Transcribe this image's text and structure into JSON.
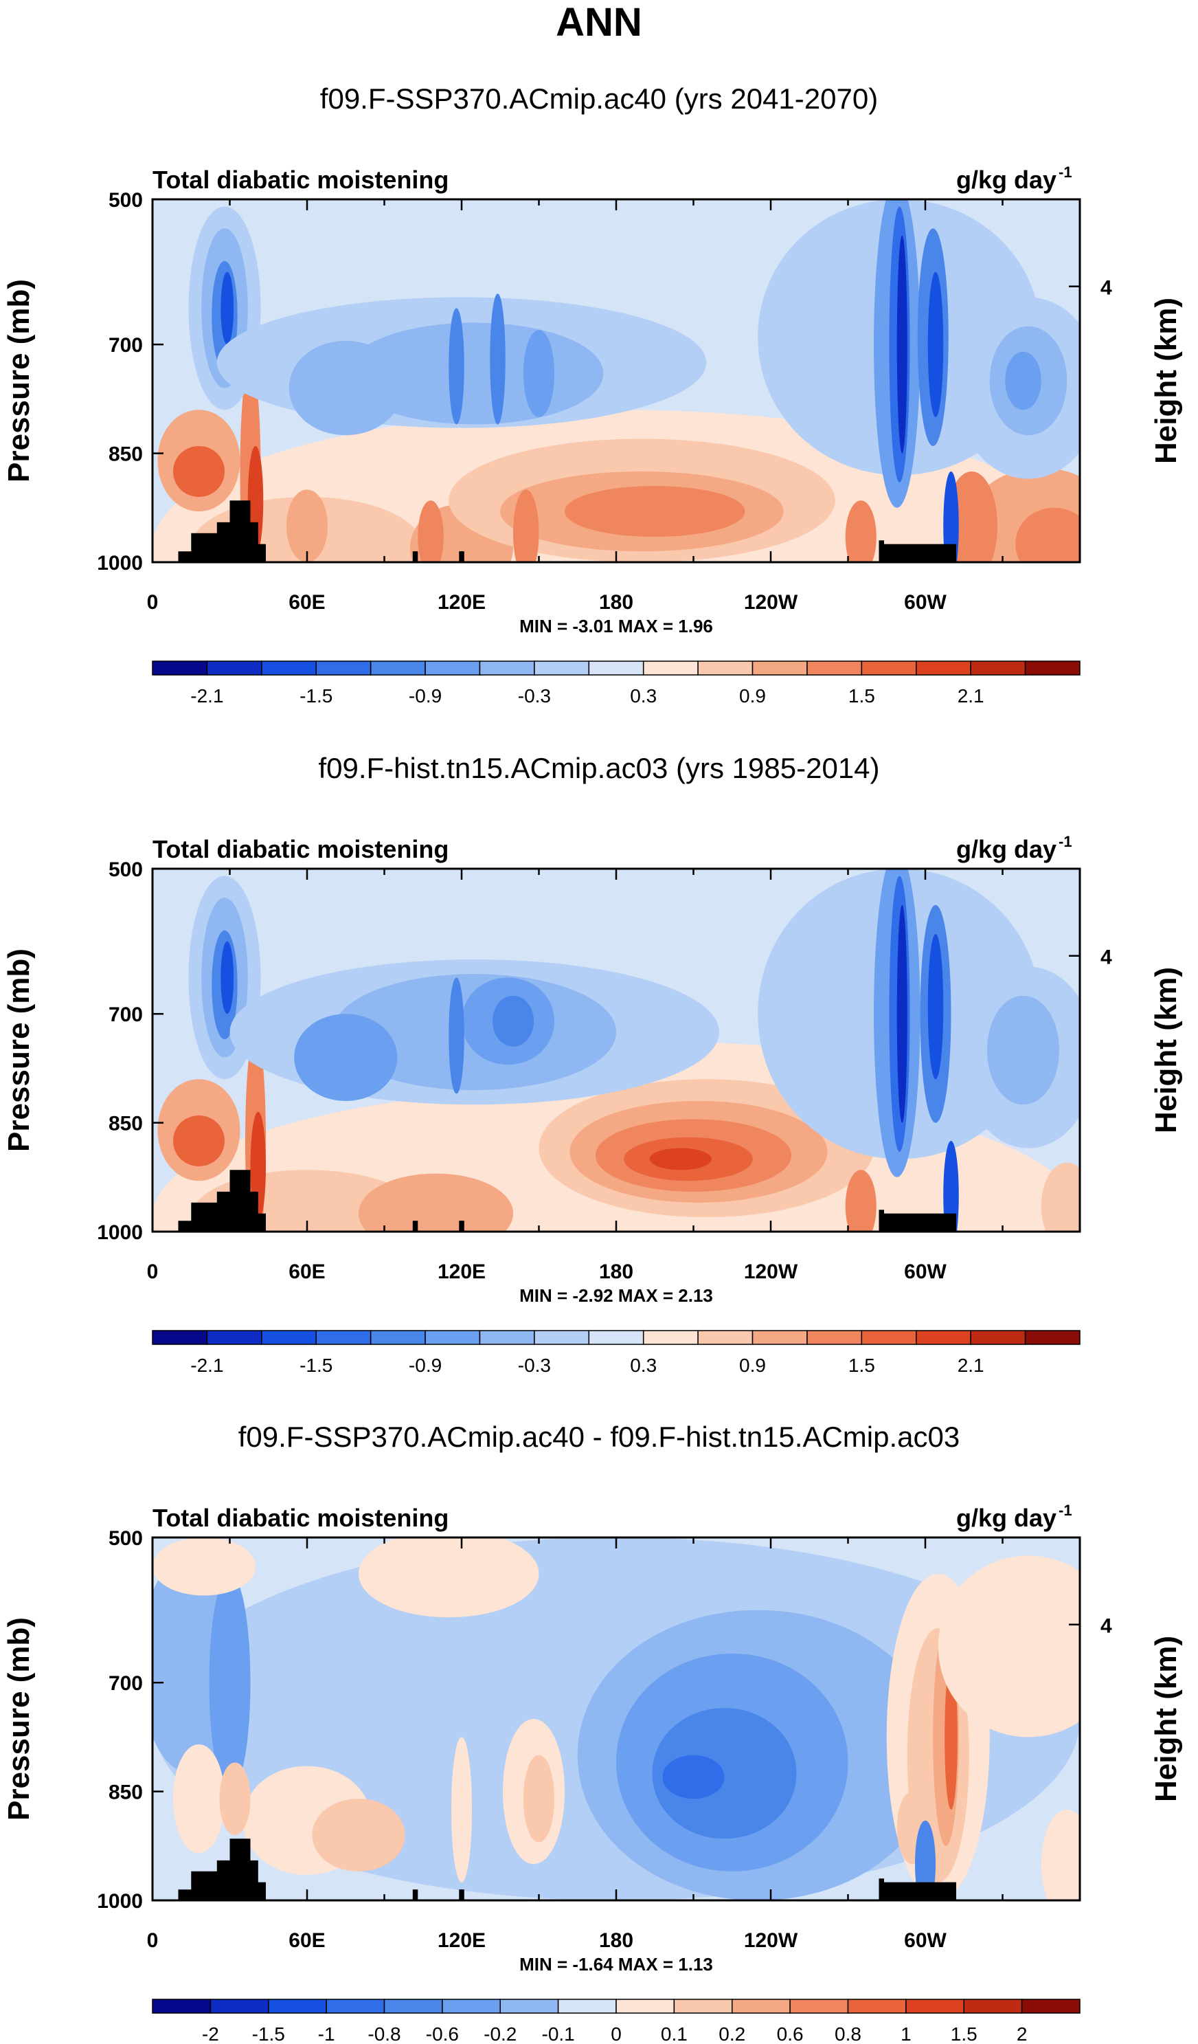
{
  "figure_title": "ANN",
  "chart_data": [
    {
      "type": "heatmap",
      "title": "f09.F-SSP370.ACmip.ac40 (yrs 2041-2070)",
      "left_label": "Total diabatic moistening",
      "units_base": "g/kg day",
      "units_exp": "-1",
      "ylabel": "Pressure (mb)",
      "y2label": "Height (km)",
      "yticks": [
        "500",
        "700",
        "850",
        "1000"
      ],
      "ytick_values": [
        500,
        700,
        850,
        1000
      ],
      "y2ticks": [
        "4"
      ],
      "xticks": [
        "0",
        "60E",
        "120E",
        "180",
        "120W",
        "60W"
      ],
      "xtick_values": [
        0,
        60,
        120,
        180,
        240,
        300
      ],
      "xlim": [
        0,
        360
      ],
      "ylim": [
        1000,
        500
      ],
      "stats": "MIN =  -3.01  MAX =   1.96",
      "colorbar_labels": [
        "-2.1",
        "-1.5",
        "-0.9",
        "-0.3",
        "0.3",
        "0.9",
        "1.5",
        "2.1"
      ],
      "colorbar_levels": [
        -2.4,
        -2.1,
        -1.8,
        -1.5,
        -1.2,
        -0.9,
        -0.6,
        -0.3,
        0,
        0.3,
        0.6,
        0.9,
        1.2,
        1.5,
        1.8,
        2.1,
        2.4
      ],
      "colorbar_label_positions": "alternate-boundaries"
    },
    {
      "type": "heatmap",
      "title": "f09.F-hist.tn15.ACmip.ac03 (yrs 1985-2014)",
      "left_label": "Total diabatic moistening",
      "units_base": "g/kg day",
      "units_exp": "-1",
      "ylabel": "Pressure (mb)",
      "y2label": "Height (km)",
      "yticks": [
        "500",
        "700",
        "850",
        "1000"
      ],
      "ytick_values": [
        500,
        700,
        850,
        1000
      ],
      "y2ticks": [
        "4"
      ],
      "xticks": [
        "0",
        "60E",
        "120E",
        "180",
        "120W",
        "60W"
      ],
      "xtick_values": [
        0,
        60,
        120,
        180,
        240,
        300
      ],
      "xlim": [
        0,
        360
      ],
      "ylim": [
        1000,
        500
      ],
      "stats": "MIN =  -2.92  MAX =   2.13",
      "colorbar_labels": [
        "-2.1",
        "-1.5",
        "-0.9",
        "-0.3",
        "0.3",
        "0.9",
        "1.5",
        "2.1"
      ],
      "colorbar_levels": [
        -2.4,
        -2.1,
        -1.8,
        -1.5,
        -1.2,
        -0.9,
        -0.6,
        -0.3,
        0,
        0.3,
        0.6,
        0.9,
        1.2,
        1.5,
        1.8,
        2.1,
        2.4
      ],
      "colorbar_label_positions": "alternate-boundaries"
    },
    {
      "type": "heatmap",
      "title": "f09.F-SSP370.ACmip.ac40 - f09.F-hist.tn15.ACmip.ac03",
      "left_label": "Total diabatic moistening",
      "units_base": "g/kg day",
      "units_exp": "-1",
      "ylabel": "Pressure (mb)",
      "y2label": "Height (km)",
      "yticks": [
        "500",
        "700",
        "850",
        "1000"
      ],
      "ytick_values": [
        500,
        700,
        850,
        1000
      ],
      "y2ticks": [
        "4"
      ],
      "xticks": [
        "0",
        "60E",
        "120E",
        "180",
        "120W",
        "60W"
      ],
      "xtick_values": [
        0,
        60,
        120,
        180,
        240,
        300
      ],
      "xlim": [
        0,
        360
      ],
      "ylim": [
        1000,
        500
      ],
      "stats": "MIN =  -1.64  MAX =   1.13",
      "colorbar_labels": [
        "-2",
        "-1.5",
        "-1",
        "-0.8",
        "-0.6",
        "-0.2",
        "-0.1",
        "0",
        "0.1",
        "0.2",
        "0.6",
        "0.8",
        "1",
        "1.5",
        "2"
      ],
      "colorbar_levels": [
        -2,
        -1.5,
        -1,
        -0.8,
        -0.6,
        -0.2,
        -0.1,
        0,
        0.1,
        0.2,
        0.6,
        0.8,
        1,
        1.5,
        2
      ],
      "colorbar_label_positions": "all-boundaries"
    }
  ],
  "colors": {
    "colormap": [
      "#08088c",
      "#0c2cc4",
      "#1550e0",
      "#2f6de9",
      "#4a86ea",
      "#6b9ff0",
      "#8fb8f2",
      "#b4cff5",
      "#d6e4f8",
      "#fde4d4",
      "#f9c8ad",
      "#f5a884",
      "#f0865e",
      "#ea643b",
      "#dc4121",
      "#bf2a12",
      "#8c0d08"
    ],
    "axis": "#000000",
    "topography": "#000000"
  }
}
